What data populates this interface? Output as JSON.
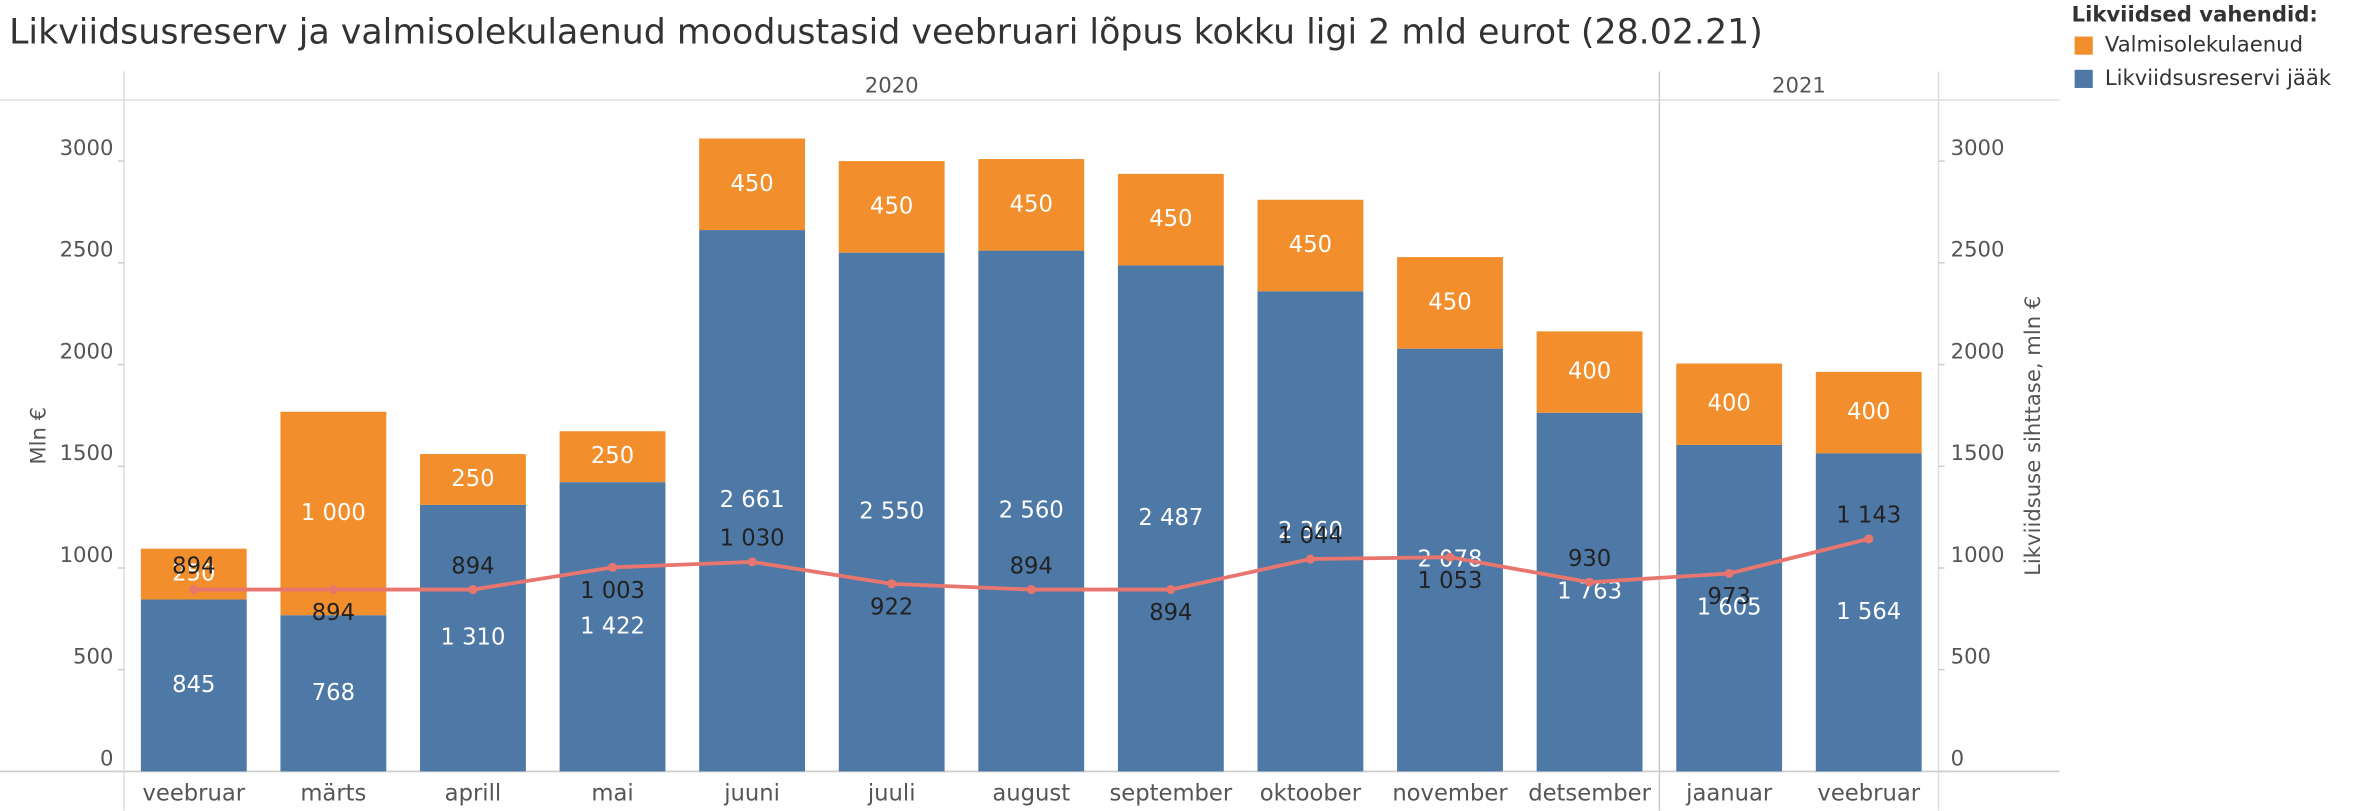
{
  "chart_data": {
    "type": "stacked_bar_line",
    "title": "Likviidsusreserv ja valmisolekulaenud moodustasid veebruari lõpus kokku ligi 2 mld eurot (28.02.21)",
    "y_label": "Mln €",
    "y2_label": "Likviidsuse sihttase, mln €",
    "legend_title": "Likviidsed vahendid:",
    "year_groups": [
      {
        "label": "2020",
        "count": 11
      },
      {
        "label": "2021",
        "count": 2
      }
    ],
    "categories": [
      "veebruar",
      "märts",
      "aprill",
      "mai",
      "juuni",
      "juuli",
      "august",
      "september",
      "oktoober",
      "november",
      "detsember",
      "jaanuar",
      "veebruar"
    ],
    "series": [
      {
        "name": "Likviidsusreservi jääk",
        "color": "#4e79a7",
        "values": [
          845,
          768,
          1310,
          1422,
          2661,
          2550,
          2560,
          2487,
          2360,
          2078,
          1763,
          1605,
          1564
        ],
        "value_labels": [
          "845",
          "768",
          "1 310",
          "1 422",
          "2 661",
          "2 550",
          "2 560",
          "2 487",
          "2 360",
          "2 078",
          "1 763",
          "1 605",
          "1 564"
        ]
      },
      {
        "name": "Valmisolekulaenud",
        "color": "#f28e2b",
        "values": [
          250,
          1000,
          250,
          250,
          450,
          450,
          450,
          450,
          450,
          450,
          400,
          400,
          400
        ],
        "value_labels": [
          "250",
          "1 000",
          "250",
          "250",
          "450",
          "450",
          "450",
          "450",
          "450",
          "450",
          "400",
          "400",
          "400"
        ]
      },
      {
        "name": "Likviidsuse sihttase",
        "color": "#e8766f",
        "axis": "y2",
        "line": true,
        "values": [
          894,
          894,
          894,
          1003,
          1030,
          922,
          894,
          894,
          1044,
          1053,
          930,
          973,
          1143
        ],
        "value_labels": [
          "894",
          "894",
          "894",
          "1 003",
          "1 030",
          "922",
          "894",
          "894",
          "1 044",
          "1 053",
          "930",
          "973",
          "1 143"
        ]
      }
    ],
    "ylim": [
      0,
      3300
    ],
    "yticks": [
      0,
      500,
      1000,
      1500,
      2000,
      2500,
      3000
    ],
    "y2lim": [
      0,
      3300
    ],
    "y2ticks": [
      0,
      500,
      1000,
      1500,
      2000,
      2500,
      3000
    ]
  }
}
